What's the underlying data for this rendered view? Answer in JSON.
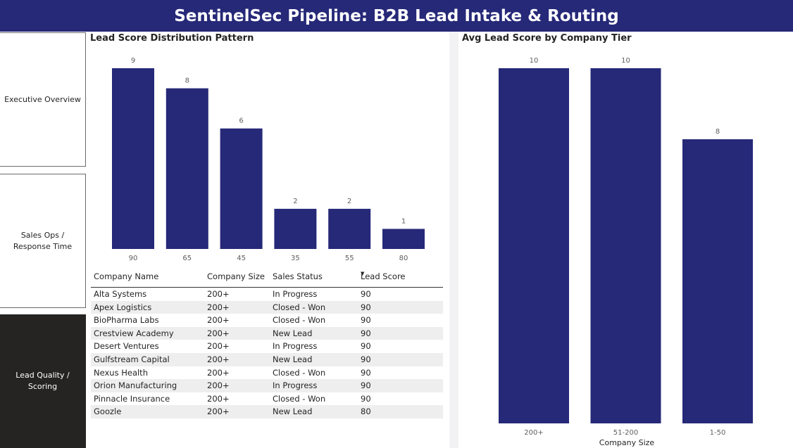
{
  "header": {
    "title": "SentinelSec Pipeline: B2B Lead Intake & Routing"
  },
  "nav": {
    "items": [
      {
        "label": "Executive Overview",
        "active": false
      },
      {
        "label": "Sales Ops / Response Time",
        "active": false
      },
      {
        "label": "Lead Quality / Scoring",
        "active": true
      }
    ]
  },
  "colors": {
    "bar": "#262878",
    "header_bg": "#262878",
    "active_nav": "#252423"
  },
  "chart_data": [
    {
      "type": "bar",
      "title": "Lead Score Distribution Pattern",
      "categories": [
        "90",
        "65",
        "45",
        "35",
        "55",
        "80"
      ],
      "values": [
        9,
        8,
        6,
        2,
        2,
        1
      ],
      "xlabel": "",
      "ylabel": "",
      "ylim": [
        0,
        9
      ],
      "data_labels": true,
      "grid": false
    },
    {
      "type": "bar",
      "title": "Avg Lead Score by Company Tier",
      "categories": [
        "200+",
        "51-200",
        "1-50"
      ],
      "values": [
        10,
        10,
        8
      ],
      "xlabel": "Company Size",
      "ylabel": "",
      "ylim": [
        0,
        10
      ],
      "data_labels": true,
      "grid": false
    }
  ],
  "table": {
    "columns": [
      "Company Name",
      "Company Size",
      "Sales Status",
      "Lead Score"
    ],
    "sort_icon": "sort-descending-icon",
    "rows": [
      [
        "Alta Systems",
        "200+",
        "In Progress",
        "90"
      ],
      [
        "Apex Logistics",
        "200+",
        "Closed - Won",
        "90"
      ],
      [
        "BioPharma Labs",
        "200+",
        "Closed - Won",
        "90"
      ],
      [
        "Crestview Academy",
        "200+",
        "New Lead",
        "90"
      ],
      [
        "Desert Ventures",
        "200+",
        "In Progress",
        "90"
      ],
      [
        "Gulfstream Capital",
        "200+",
        "New Lead",
        "90"
      ],
      [
        "Nexus Health",
        "200+",
        "Closed - Won",
        "90"
      ],
      [
        "Orion Manufacturing",
        "200+",
        "In Progress",
        "90"
      ],
      [
        "Pinnacle Insurance",
        "200+",
        "Closed - Won",
        "90"
      ],
      [
        "Goozle",
        "200+",
        "New Lead",
        "80"
      ]
    ]
  }
}
